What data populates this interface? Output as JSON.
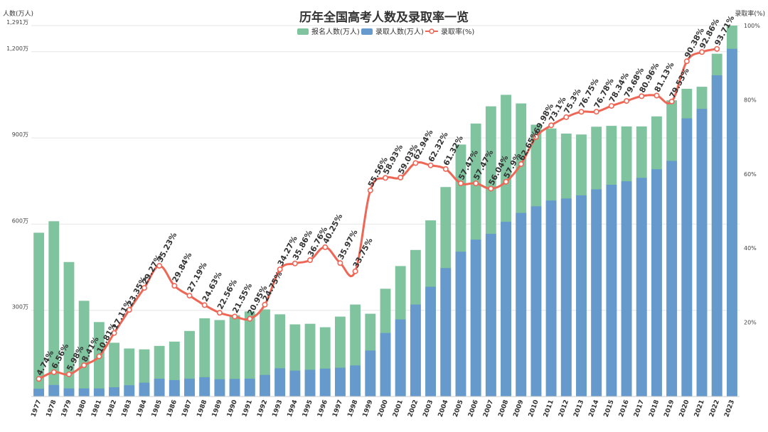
{
  "chart_data": {
    "type": "bar",
    "title": "历年全国高考人数及录取率一览",
    "ylabel_left": "人数(万人)",
    "ylabel_right": "录取率(%)",
    "left_ticks": [
      "1,291万",
      "1,200万",
      "900万",
      "600万",
      "300万"
    ],
    "left_tick_values": [
      1291,
      1200,
      900,
      600,
      300
    ],
    "right_ticks": [
      "100%",
      "80%",
      "60%",
      "40%",
      "20%"
    ],
    "right_tick_values": [
      100,
      80,
      60,
      40,
      20
    ],
    "ylim_left": [
      0,
      1291
    ],
    "ylim_right": [
      0,
      100
    ],
    "grid": true,
    "legend_position": "top-center",
    "categories": [
      "1977",
      "1978",
      "1979",
      "1980",
      "1981",
      "1982",
      "1983",
      "1984",
      "1985",
      "1986",
      "1987",
      "1988",
      "1989",
      "1990",
      "1991",
      "1992",
      "1993",
      "1994",
      "1995",
      "1996",
      "1997",
      "1998",
      "1999",
      "2000",
      "2001",
      "2002",
      "2003",
      "2004",
      "2005",
      "2006",
      "2007",
      "2008",
      "2009",
      "2010",
      "2011",
      "2012",
      "2013",
      "2014",
      "2015",
      "2016",
      "2017",
      "2018",
      "2019",
      "2020",
      "2021",
      "2022",
      "2023"
    ],
    "series": [
      {
        "name": "报名人数(万人)",
        "type": "bar",
        "color": "#7fc39f",
        "values": [
          570,
          610,
          468,
          333,
          259,
          187,
          167,
          164,
          176,
          191,
          228,
          272,
          266,
          283,
          296,
          303,
          286,
          251,
          253,
          241,
          278,
          320,
          288,
          375,
          454,
          510,
          613,
          729,
          877,
          950,
          1010,
          1050,
          1020,
          946,
          933,
          915,
          912,
          939,
          942,
          940,
          940,
          975,
          1031,
          1071,
          1078,
          1193,
          1291
        ]
      },
      {
        "name": "录取人数(万人)",
        "type": "bar",
        "color": "#6699cc",
        "values": [
          27,
          40,
          28,
          28,
          28,
          32,
          39,
          48,
          62,
          57,
          62,
          67,
          60,
          61,
          62,
          75,
          98,
          90,
          93,
          97,
          100,
          108,
          160,
          221,
          268,
          320,
          382,
          447,
          504,
          546,
          566,
          608,
          639,
          662,
          682,
          689,
          700,
          721,
          737,
          749,
          761,
          791,
          820,
          968,
          1001,
          1118,
          1210
        ]
      },
      {
        "name": "录取率(%)",
        "type": "line",
        "color": "#ee6655",
        "values": [
          4.74,
          6.56,
          5.98,
          8.41,
          10.81,
          17.11,
          23.35,
          29.27,
          35.23,
          29.84,
          27.19,
          24.63,
          22.56,
          21.55,
          20.95,
          24.75,
          34.27,
          35.86,
          36.76,
          40.25,
          35.97,
          33.75,
          55.56,
          58.93,
          59.03,
          62.94,
          62.32,
          61.32,
          57.47,
          57.47,
          56.04,
          57.9,
          62.65,
          69.98,
          73.1,
          75.3,
          76.75,
          76.78,
          78.34,
          79.68,
          80.96,
          81.13,
          79.53,
          90.38,
          92.86,
          93.71,
          null
        ],
        "labels": [
          "4.74%",
          "6.56%",
          "5.98%",
          "8.41%",
          "10.81%",
          "17.11%",
          "23.35%",
          "29.27%",
          "35.23%",
          "29.84%",
          "27.19%",
          "24.63%",
          "22.56%",
          "21.55%",
          "20.95%",
          "24.75%",
          "34.27%",
          "35.86%",
          "36.76%",
          "40.25%",
          "35.97%",
          "33.75%",
          "55.56%",
          "58.93%",
          "59.03%",
          "62.94%",
          "62.32%",
          "61.32%",
          "57.47%",
          "57.47%",
          "56.04%",
          "57.9%",
          "62.65%",
          "69.98%",
          "73.1%",
          "75.3%",
          "76.75%",
          "76.78%",
          "78.34%",
          "79.68%",
          "80.96%",
          "81.13%",
          "79.53%",
          "90.38%",
          "92.86%",
          "93.71%",
          ""
        ]
      }
    ]
  },
  "colors": {
    "enroll_bar": "#7fc39f",
    "admit_bar": "#6699cc",
    "rate_line": "#ee6655",
    "grid": "#e6e6e6"
  }
}
